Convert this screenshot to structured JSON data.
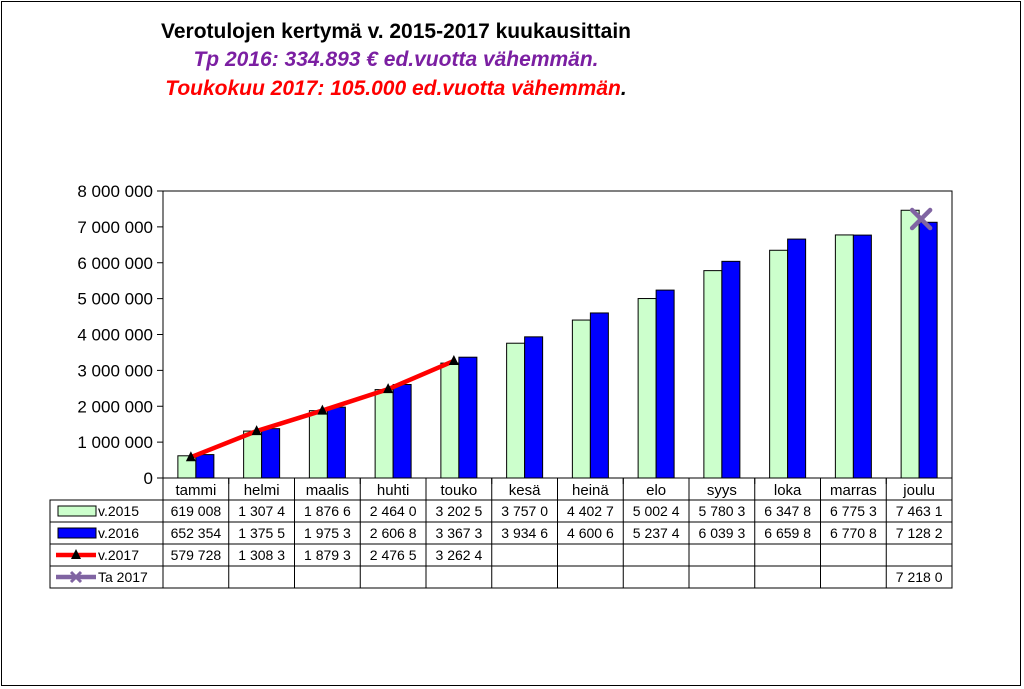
{
  "title": "Verotulojen kertymä v. 2015-2017  kuukausittain",
  "subtitle1": "Tp 2016: 334.893 € ed.vuotta vähemmän.",
  "subtitle2_text": "Toukokuu 2017: 105.000 ed.vuotta vähemmän",
  "subtitle2_dot": ".",
  "colors": {
    "v2015": "#ccffcc",
    "v2016": "#0000ff",
    "v2017": "#ff0000",
    "ta2017": "#8064a2",
    "marker": "#000000"
  },
  "chart_data": {
    "type": "bar",
    "title": "Verotulojen kertymä v. 2015-2017  kuukausittain",
    "categories": [
      "tammi",
      "helmi",
      "maalis",
      "huhti",
      "touko",
      "kesä",
      "heinä",
      "elo",
      "syys",
      "loka",
      "marras",
      "joulu"
    ],
    "ylim": [
      0,
      8000000
    ],
    "yticks": [
      "0",
      "1 000 000",
      "2 000 000",
      "3 000 000",
      "4 000 000",
      "5 000 000",
      "6 000 000",
      "7 000 000",
      "8 000 000"
    ],
    "grid": false,
    "legend": "data-table",
    "series": [
      {
        "name": "v.2015",
        "type": "bar",
        "values": [
          619008,
          1307400,
          1876600,
          2464000,
          3202500,
          3757000,
          4402700,
          5002400,
          5780300,
          6347800,
          6775300,
          7463100
        ],
        "table": [
          "619 008",
          "1 307 4",
          "1 876 6",
          "2 464 0",
          "3 202 5",
          "3 757 0",
          "4 402 7",
          "5 002 4",
          "5 780 3",
          "6 347 8",
          "6 775 3",
          "7 463 1"
        ]
      },
      {
        "name": "v.2016",
        "type": "bar",
        "values": [
          652354,
          1375500,
          1975300,
          2606800,
          3367300,
          3934600,
          4600600,
          5237400,
          6039300,
          6659800,
          6770800,
          7128200
        ],
        "table": [
          "652 354",
          "1 375 5",
          "1 975 3",
          "2 606 8",
          "3 367 3",
          "3 934 6",
          "4 600 6",
          "5 237 4",
          "6 039 3",
          "6 659 8",
          "6 770 8",
          "7 128 2"
        ]
      },
      {
        "name": "v.2017",
        "type": "line",
        "values": [
          579728,
          1308300,
          1879300,
          2476500,
          3262400,
          null,
          null,
          null,
          null,
          null,
          null,
          null
        ],
        "table": [
          "579 728",
          "1 308 3",
          "1 879 3",
          "2 476 5",
          "3 262 4",
          "",
          "",
          "",
          "",
          "",
          "",
          ""
        ]
      },
      {
        "name": "Ta 2017",
        "type": "marker",
        "values": [
          null,
          null,
          null,
          null,
          null,
          null,
          null,
          null,
          null,
          null,
          null,
          7218000
        ],
        "table": [
          "",
          "",
          "",
          "",
          "",
          "",
          "",
          "",
          "",
          "",
          "",
          "7 218 0"
        ]
      }
    ]
  }
}
